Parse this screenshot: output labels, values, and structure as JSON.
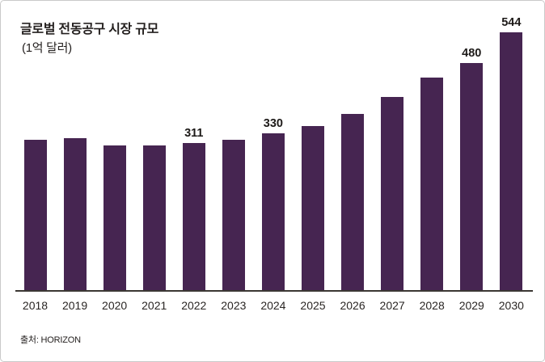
{
  "header": {
    "title": "글로벌 전동공구 시장 규모",
    "subtitle": "(1억 달러)"
  },
  "footer": {
    "source": "출처: HORIZON"
  },
  "colors": {
    "bar": "#462551",
    "axis": "#3b3733",
    "text": "#231f1e",
    "border": "#c9c9c9",
    "background": "#ffffff"
  },
  "chart_data": {
    "type": "bar",
    "title": "글로벌 전동공구 시장 규모",
    "subtitle_unit": "(1억 달러)",
    "xlabel": "",
    "ylabel": "",
    "ylim": [
      0,
      560
    ],
    "grid": "off",
    "legend": "none",
    "source": "출처: HORIZON",
    "categories": [
      "2018",
      "2019",
      "2020",
      "2021",
      "2022",
      "2023",
      "2024",
      "2025",
      "2026",
      "2027",
      "2028",
      "2029",
      "2030"
    ],
    "values": [
      318,
      321,
      306,
      306,
      311,
      317,
      330,
      347,
      371,
      408,
      449,
      480,
      544
    ],
    "data_labels": [
      "",
      "",
      "",
      "",
      "311",
      "",
      "330",
      "",
      "",
      "",
      "",
      "480",
      "544"
    ],
    "labeled_points": {
      "2022": 311,
      "2024": 330,
      "2029": 480,
      "2030": 544
    }
  }
}
